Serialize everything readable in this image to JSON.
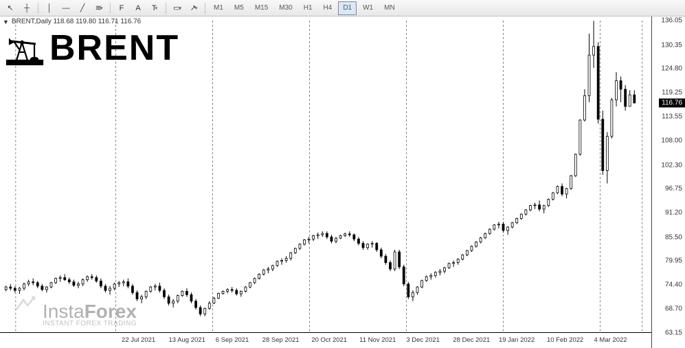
{
  "toolbar": {
    "tools": [
      {
        "name": "cursor-icon",
        "glyph": "↖"
      },
      {
        "name": "crosshair-icon",
        "glyph": "┼"
      },
      {
        "name": "vline-icon",
        "glyph": "│"
      },
      {
        "name": "hline-icon",
        "glyph": "—"
      },
      {
        "name": "trendline-icon",
        "glyph": "╱"
      },
      {
        "name": "channel-icon",
        "glyph": "≋"
      },
      {
        "name": "fib-icon",
        "glyph": "F"
      },
      {
        "name": "text-icon",
        "glyph": "A"
      },
      {
        "name": "label-icon",
        "glyph": "T"
      },
      {
        "name": "shapes-icon",
        "glyph": "▭"
      },
      {
        "name": "arrows-icon",
        "glyph": "↗"
      }
    ],
    "timeframes": [
      {
        "label": "M1",
        "active": false
      },
      {
        "label": "M5",
        "active": false
      },
      {
        "label": "M15",
        "active": false
      },
      {
        "label": "M30",
        "active": false
      },
      {
        "label": "H1",
        "active": false
      },
      {
        "label": "H4",
        "active": false
      },
      {
        "label": "D1",
        "active": true
      },
      {
        "label": "W1",
        "active": false
      },
      {
        "label": "MN",
        "active": false
      }
    ]
  },
  "chart": {
    "symbol_line": "BRENT,Daily  118.68 119.80 116.71 116.76",
    "brent_label": "BRENT",
    "watermark_brand": "Insta",
    "watermark_brand2": "Forex",
    "watermark_tag": "INSTANT FOREX TRADING",
    "current_price": "116.76",
    "price_min": 63.15,
    "price_max": 136.05,
    "price_ticks": [
      136.05,
      130.35,
      124.8,
      119.25,
      113.55,
      108.0,
      102.3,
      96.75,
      91.2,
      85.5,
      79.95,
      74.4,
      68.7,
      63.15
    ],
    "date_ticks": [
      {
        "x": 0.21,
        "label": "22 Jul 2021"
      },
      {
        "x": 0.285,
        "label": "13 Aug 2021"
      },
      {
        "x": 0.355,
        "label": "6 Sep 2021"
      },
      {
        "x": 0.43,
        "label": "28 Sep 2021"
      },
      {
        "x": 0.505,
        "label": "20 Oct 2021"
      },
      {
        "x": 0.58,
        "label": "11 Nov 2021"
      },
      {
        "x": 0.65,
        "label": "3 Dec 2021"
      },
      {
        "x": 0.725,
        "label": "28 Dec 2021"
      },
      {
        "x": 0.795,
        "label": "19 Jan 2022"
      },
      {
        "x": 0.87,
        "label": "10 Feb 2022"
      },
      {
        "x": 0.94,
        "label": "4 Mar 2022"
      }
    ],
    "grid_vlines_x": [
      0.02,
      0.175,
      0.325,
      0.475,
      0.625,
      0.775,
      0.925,
      0.99
    ],
    "candle_color": "#000000",
    "background_color": "#ffffff",
    "grid_color": "#808080",
    "candles": [
      {
        "x": 0.005,
        "o": 73.2,
        "h": 74.1,
        "l": 72.8,
        "c": 73.8
      },
      {
        "x": 0.012,
        "o": 73.8,
        "h": 74.5,
        "l": 73.0,
        "c": 73.5
      },
      {
        "x": 0.019,
        "o": 73.5,
        "h": 74.0,
        "l": 72.5,
        "c": 73.0
      },
      {
        "x": 0.026,
        "o": 73.0,
        "h": 73.8,
        "l": 72.2,
        "c": 73.5
      },
      {
        "x": 0.033,
        "o": 73.5,
        "h": 74.8,
        "l": 73.0,
        "c": 74.5
      },
      {
        "x": 0.04,
        "o": 74.5,
        "h": 75.5,
        "l": 74.0,
        "c": 75.0
      },
      {
        "x": 0.047,
        "o": 75.0,
        "h": 75.8,
        "l": 74.2,
        "c": 74.8
      },
      {
        "x": 0.054,
        "o": 74.8,
        "h": 75.2,
        "l": 73.5,
        "c": 74.0
      },
      {
        "x": 0.061,
        "o": 74.0,
        "h": 74.5,
        "l": 72.8,
        "c": 73.2
      },
      {
        "x": 0.068,
        "o": 73.2,
        "h": 74.0,
        "l": 72.5,
        "c": 73.8
      },
      {
        "x": 0.075,
        "o": 73.8,
        "h": 75.0,
        "l": 73.5,
        "c": 74.8
      },
      {
        "x": 0.082,
        "o": 74.8,
        "h": 76.0,
        "l": 74.5,
        "c": 75.8
      },
      {
        "x": 0.089,
        "o": 75.8,
        "h": 76.5,
        "l": 75.0,
        "c": 76.0
      },
      {
        "x": 0.096,
        "o": 76.0,
        "h": 76.8,
        "l": 75.2,
        "c": 75.5
      },
      {
        "x": 0.103,
        "o": 75.5,
        "h": 76.0,
        "l": 74.5,
        "c": 75.0
      },
      {
        "x": 0.11,
        "o": 75.0,
        "h": 75.5,
        "l": 73.8,
        "c": 74.2
      },
      {
        "x": 0.117,
        "o": 74.2,
        "h": 75.0,
        "l": 73.5,
        "c": 74.5
      },
      {
        "x": 0.124,
        "o": 74.5,
        "h": 75.8,
        "l": 74.0,
        "c": 75.5
      },
      {
        "x": 0.131,
        "o": 75.5,
        "h": 76.5,
        "l": 75.0,
        "c": 76.2
      },
      {
        "x": 0.138,
        "o": 76.2,
        "h": 76.8,
        "l": 75.5,
        "c": 76.0
      },
      {
        "x": 0.145,
        "o": 76.0,
        "h": 76.5,
        "l": 74.8,
        "c": 75.2
      },
      {
        "x": 0.152,
        "o": 75.2,
        "h": 75.8,
        "l": 73.5,
        "c": 74.0
      },
      {
        "x": 0.159,
        "o": 74.0,
        "h": 74.5,
        "l": 72.5,
        "c": 73.0
      },
      {
        "x": 0.166,
        "o": 73.0,
        "h": 74.0,
        "l": 72.0,
        "c": 73.5
      },
      {
        "x": 0.173,
        "o": 73.5,
        "h": 74.8,
        "l": 73.0,
        "c": 74.5
      },
      {
        "x": 0.18,
        "o": 74.5,
        "h": 75.2,
        "l": 73.8,
        "c": 74.8
      },
      {
        "x": 0.187,
        "o": 74.8,
        "h": 75.5,
        "l": 74.0,
        "c": 75.0
      },
      {
        "x": 0.194,
        "o": 75.0,
        "h": 75.8,
        "l": 73.5,
        "c": 74.0
      },
      {
        "x": 0.201,
        "o": 74.0,
        "h": 74.5,
        "l": 72.0,
        "c": 72.5
      },
      {
        "x": 0.208,
        "o": 72.5,
        "h": 73.0,
        "l": 70.5,
        "c": 71.0
      },
      {
        "x": 0.215,
        "o": 71.0,
        "h": 72.0,
        "l": 70.0,
        "c": 71.5
      },
      {
        "x": 0.222,
        "o": 71.5,
        "h": 73.0,
        "l": 71.0,
        "c": 72.8
      },
      {
        "x": 0.229,
        "o": 72.8,
        "h": 74.0,
        "l": 72.5,
        "c": 73.8
      },
      {
        "x": 0.236,
        "o": 73.8,
        "h": 74.5,
        "l": 73.0,
        "c": 74.0
      },
      {
        "x": 0.243,
        "o": 74.0,
        "h": 74.8,
        "l": 72.5,
        "c": 73.0
      },
      {
        "x": 0.25,
        "o": 73.0,
        "h": 73.5,
        "l": 71.0,
        "c": 71.5
      },
      {
        "x": 0.257,
        "o": 71.5,
        "h": 72.0,
        "l": 69.5,
        "c": 70.0
      },
      {
        "x": 0.264,
        "o": 70.0,
        "h": 71.0,
        "l": 69.0,
        "c": 70.5
      },
      {
        "x": 0.271,
        "o": 70.5,
        "h": 72.0,
        "l": 70.0,
        "c": 71.8
      },
      {
        "x": 0.278,
        "o": 71.8,
        "h": 73.0,
        "l": 71.5,
        "c": 72.8
      },
      {
        "x": 0.285,
        "o": 72.8,
        "h": 73.5,
        "l": 71.5,
        "c": 72.0
      },
      {
        "x": 0.292,
        "o": 72.0,
        "h": 72.5,
        "l": 70.0,
        "c": 70.5
      },
      {
        "x": 0.299,
        "o": 70.5,
        "h": 71.0,
        "l": 68.5,
        "c": 69.0
      },
      {
        "x": 0.306,
        "o": 69.0,
        "h": 69.5,
        "l": 67.0,
        "c": 67.5
      },
      {
        "x": 0.313,
        "o": 67.5,
        "h": 69.0,
        "l": 67.0,
        "c": 68.8
      },
      {
        "x": 0.32,
        "o": 68.8,
        "h": 70.5,
        "l": 68.5,
        "c": 70.0
      },
      {
        "x": 0.327,
        "o": 70.0,
        "h": 71.5,
        "l": 69.8,
        "c": 71.2
      },
      {
        "x": 0.334,
        "o": 71.2,
        "h": 72.5,
        "l": 71.0,
        "c": 72.3
      },
      {
        "x": 0.341,
        "o": 72.3,
        "h": 73.0,
        "l": 72.0,
        "c": 72.8
      },
      {
        "x": 0.348,
        "o": 72.8,
        "h": 73.5,
        "l": 72.3,
        "c": 73.2
      },
      {
        "x": 0.355,
        "o": 73.2,
        "h": 73.8,
        "l": 72.5,
        "c": 73.0
      },
      {
        "x": 0.362,
        "o": 73.0,
        "h": 73.5,
        "l": 71.8,
        "c": 72.2
      },
      {
        "x": 0.369,
        "o": 72.2,
        "h": 73.0,
        "l": 71.5,
        "c": 72.8
      },
      {
        "x": 0.376,
        "o": 72.8,
        "h": 74.0,
        "l": 72.5,
        "c": 73.8
      },
      {
        "x": 0.383,
        "o": 73.8,
        "h": 75.0,
        "l": 73.5,
        "c": 74.8
      },
      {
        "x": 0.39,
        "o": 74.8,
        "h": 76.0,
        "l": 74.5,
        "c": 75.8
      },
      {
        "x": 0.397,
        "o": 75.8,
        "h": 77.0,
        "l": 75.5,
        "c": 76.8
      },
      {
        "x": 0.404,
        "o": 76.8,
        "h": 78.0,
        "l": 76.5,
        "c": 77.8
      },
      {
        "x": 0.411,
        "o": 77.8,
        "h": 78.5,
        "l": 77.0,
        "c": 78.0
      },
      {
        "x": 0.418,
        "o": 78.0,
        "h": 79.0,
        "l": 77.5,
        "c": 78.8
      },
      {
        "x": 0.425,
        "o": 78.8,
        "h": 80.0,
        "l": 78.5,
        "c": 79.8
      },
      {
        "x": 0.432,
        "o": 79.8,
        "h": 80.5,
        "l": 79.0,
        "c": 80.0
      },
      {
        "x": 0.439,
        "o": 80.0,
        "h": 81.0,
        "l": 79.5,
        "c": 80.5
      },
      {
        "x": 0.446,
        "o": 80.5,
        "h": 82.0,
        "l": 80.0,
        "c": 81.8
      },
      {
        "x": 0.453,
        "o": 81.8,
        "h": 83.0,
        "l": 81.5,
        "c": 82.8
      },
      {
        "x": 0.46,
        "o": 82.8,
        "h": 84.0,
        "l": 82.5,
        "c": 83.8
      },
      {
        "x": 0.467,
        "o": 83.8,
        "h": 85.0,
        "l": 83.5,
        "c": 84.8
      },
      {
        "x": 0.474,
        "o": 84.8,
        "h": 85.5,
        "l": 84.0,
        "c": 85.0
      },
      {
        "x": 0.481,
        "o": 85.0,
        "h": 86.0,
        "l": 84.5,
        "c": 85.8
      },
      {
        "x": 0.488,
        "o": 85.8,
        "h": 86.5,
        "l": 85.0,
        "c": 86.0
      },
      {
        "x": 0.495,
        "o": 86.0,
        "h": 86.8,
        "l": 85.5,
        "c": 86.3
      },
      {
        "x": 0.502,
        "o": 86.3,
        "h": 86.8,
        "l": 85.0,
        "c": 85.5
      },
      {
        "x": 0.509,
        "o": 85.5,
        "h": 86.0,
        "l": 84.0,
        "c": 84.5
      },
      {
        "x": 0.516,
        "o": 84.5,
        "h": 85.5,
        "l": 84.0,
        "c": 85.2
      },
      {
        "x": 0.523,
        "o": 85.2,
        "h": 86.0,
        "l": 85.0,
        "c": 85.8
      },
      {
        "x": 0.53,
        "o": 85.8,
        "h": 86.5,
        "l": 85.5,
        "c": 86.2
      },
      {
        "x": 0.537,
        "o": 86.2,
        "h": 86.8,
        "l": 85.5,
        "c": 86.0
      },
      {
        "x": 0.544,
        "o": 86.0,
        "h": 86.3,
        "l": 84.5,
        "c": 85.0
      },
      {
        "x": 0.551,
        "o": 85.0,
        "h": 85.5,
        "l": 83.5,
        "c": 84.0
      },
      {
        "x": 0.558,
        "o": 84.0,
        "h": 84.5,
        "l": 82.5,
        "c": 83.0
      },
      {
        "x": 0.565,
        "o": 83.0,
        "h": 84.0,
        "l": 82.5,
        "c": 83.8
      },
      {
        "x": 0.572,
        "o": 83.8,
        "h": 84.5,
        "l": 83.0,
        "c": 84.0
      },
      {
        "x": 0.579,
        "o": 84.0,
        "h": 84.3,
        "l": 82.0,
        "c": 82.5
      },
      {
        "x": 0.586,
        "o": 82.5,
        "h": 83.0,
        "l": 80.5,
        "c": 81.0
      },
      {
        "x": 0.593,
        "o": 81.0,
        "h": 81.5,
        "l": 79.0,
        "c": 79.5
      },
      {
        "x": 0.6,
        "o": 79.5,
        "h": 80.0,
        "l": 77.5,
        "c": 78.0
      },
      {
        "x": 0.607,
        "o": 78.0,
        "h": 82.5,
        "l": 77.5,
        "c": 82.0
      },
      {
        "x": 0.614,
        "o": 82.0,
        "h": 82.5,
        "l": 78.0,
        "c": 78.5
      },
      {
        "x": 0.621,
        "o": 78.5,
        "h": 79.0,
        "l": 74.0,
        "c": 74.5
      },
      {
        "x": 0.628,
        "o": 74.5,
        "h": 75.0,
        "l": 71.0,
        "c": 71.5
      },
      {
        "x": 0.635,
        "o": 71.5,
        "h": 73.0,
        "l": 70.5,
        "c": 72.5
      },
      {
        "x": 0.642,
        "o": 72.5,
        "h": 74.0,
        "l": 72.0,
        "c": 73.8
      },
      {
        "x": 0.649,
        "o": 73.8,
        "h": 75.5,
        "l": 73.5,
        "c": 75.3
      },
      {
        "x": 0.656,
        "o": 75.3,
        "h": 76.5,
        "l": 75.0,
        "c": 76.2
      },
      {
        "x": 0.663,
        "o": 76.2,
        "h": 77.0,
        "l": 75.5,
        "c": 76.5
      },
      {
        "x": 0.67,
        "o": 76.5,
        "h": 77.5,
        "l": 76.0,
        "c": 77.2
      },
      {
        "x": 0.677,
        "o": 77.2,
        "h": 78.0,
        "l": 76.5,
        "c": 77.5
      },
      {
        "x": 0.684,
        "o": 77.5,
        "h": 78.5,
        "l": 77.0,
        "c": 78.3
      },
      {
        "x": 0.691,
        "o": 78.3,
        "h": 79.5,
        "l": 78.0,
        "c": 79.3
      },
      {
        "x": 0.698,
        "o": 79.3,
        "h": 80.0,
        "l": 78.5,
        "c": 79.5
      },
      {
        "x": 0.705,
        "o": 79.5,
        "h": 80.5,
        "l": 79.0,
        "c": 80.3
      },
      {
        "x": 0.712,
        "o": 80.3,
        "h": 81.5,
        "l": 80.0,
        "c": 81.3
      },
      {
        "x": 0.719,
        "o": 81.3,
        "h": 82.5,
        "l": 81.0,
        "c": 82.3
      },
      {
        "x": 0.726,
        "o": 82.3,
        "h": 83.5,
        "l": 82.0,
        "c": 83.3
      },
      {
        "x": 0.733,
        "o": 83.3,
        "h": 84.5,
        "l": 83.0,
        "c": 84.3
      },
      {
        "x": 0.74,
        "o": 84.3,
        "h": 85.5,
        "l": 84.0,
        "c": 85.3
      },
      {
        "x": 0.747,
        "o": 85.3,
        "h": 86.5,
        "l": 85.0,
        "c": 86.3
      },
      {
        "x": 0.754,
        "o": 86.3,
        "h": 87.5,
        "l": 86.0,
        "c": 87.3
      },
      {
        "x": 0.761,
        "o": 87.3,
        "h": 88.5,
        "l": 87.0,
        "c": 88.3
      },
      {
        "x": 0.768,
        "o": 88.3,
        "h": 89.0,
        "l": 87.5,
        "c": 88.5
      },
      {
        "x": 0.775,
        "o": 88.5,
        "h": 89.0,
        "l": 86.5,
        "c": 87.0
      },
      {
        "x": 0.782,
        "o": 87.0,
        "h": 88.0,
        "l": 86.0,
        "c": 87.8
      },
      {
        "x": 0.789,
        "o": 87.8,
        "h": 89.0,
        "l": 87.5,
        "c": 88.8
      },
      {
        "x": 0.796,
        "o": 88.8,
        "h": 90.0,
        "l": 88.5,
        "c": 89.8
      },
      {
        "x": 0.803,
        "o": 89.8,
        "h": 91.0,
        "l": 89.5,
        "c": 90.8
      },
      {
        "x": 0.81,
        "o": 90.8,
        "h": 92.0,
        "l": 90.5,
        "c": 91.8
      },
      {
        "x": 0.817,
        "o": 91.8,
        "h": 93.0,
        "l": 91.5,
        "c": 92.8
      },
      {
        "x": 0.824,
        "o": 92.8,
        "h": 93.5,
        "l": 92.0,
        "c": 93.0
      },
      {
        "x": 0.831,
        "o": 93.0,
        "h": 94.0,
        "l": 91.5,
        "c": 92.0
      },
      {
        "x": 0.838,
        "o": 92.0,
        "h": 93.0,
        "l": 91.0,
        "c": 92.8
      },
      {
        "x": 0.845,
        "o": 92.8,
        "h": 94.5,
        "l": 92.5,
        "c": 94.3
      },
      {
        "x": 0.852,
        "o": 94.3,
        "h": 96.0,
        "l": 94.0,
        "c": 95.8
      },
      {
        "x": 0.859,
        "o": 95.8,
        "h": 97.5,
        "l": 95.5,
        "c": 97.3
      },
      {
        "x": 0.866,
        "o": 97.3,
        "h": 98.0,
        "l": 95.0,
        "c": 95.5
      },
      {
        "x": 0.873,
        "o": 95.5,
        "h": 97.0,
        "l": 94.5,
        "c": 96.8
      },
      {
        "x": 0.88,
        "o": 96.8,
        "h": 100.0,
        "l": 96.5,
        "c": 99.8
      },
      {
        "x": 0.887,
        "o": 99.8,
        "h": 105.0,
        "l": 99.5,
        "c": 104.8
      },
      {
        "x": 0.894,
        "o": 104.8,
        "h": 113.0,
        "l": 104.5,
        "c": 112.8
      },
      {
        "x": 0.901,
        "o": 112.8,
        "h": 120.0,
        "l": 112.5,
        "c": 118.5
      },
      {
        "x": 0.908,
        "o": 118.5,
        "h": 133.0,
        "l": 117.0,
        "c": 128.0
      },
      {
        "x": 0.915,
        "o": 128.0,
        "h": 136.0,
        "l": 125.0,
        "c": 130.0
      },
      {
        "x": 0.922,
        "o": 130.0,
        "h": 131.0,
        "l": 112.0,
        "c": 113.0
      },
      {
        "x": 0.929,
        "o": 113.0,
        "h": 115.0,
        "l": 100.0,
        "c": 101.0
      },
      {
        "x": 0.936,
        "o": 101.0,
        "h": 110.0,
        "l": 98.0,
        "c": 109.0
      },
      {
        "x": 0.943,
        "o": 109.0,
        "h": 118.0,
        "l": 108.5,
        "c": 117.5
      },
      {
        "x": 0.95,
        "o": 117.5,
        "h": 124.0,
        "l": 116.0,
        "c": 122.0
      },
      {
        "x": 0.957,
        "o": 122.0,
        "h": 123.0,
        "l": 117.0,
        "c": 120.0
      },
      {
        "x": 0.964,
        "o": 120.0,
        "h": 121.0,
        "l": 115.0,
        "c": 116.0
      },
      {
        "x": 0.971,
        "o": 116.0,
        "h": 119.8,
        "l": 116.0,
        "c": 118.7
      },
      {
        "x": 0.978,
        "o": 118.7,
        "h": 119.8,
        "l": 116.7,
        "c": 116.8
      }
    ]
  }
}
